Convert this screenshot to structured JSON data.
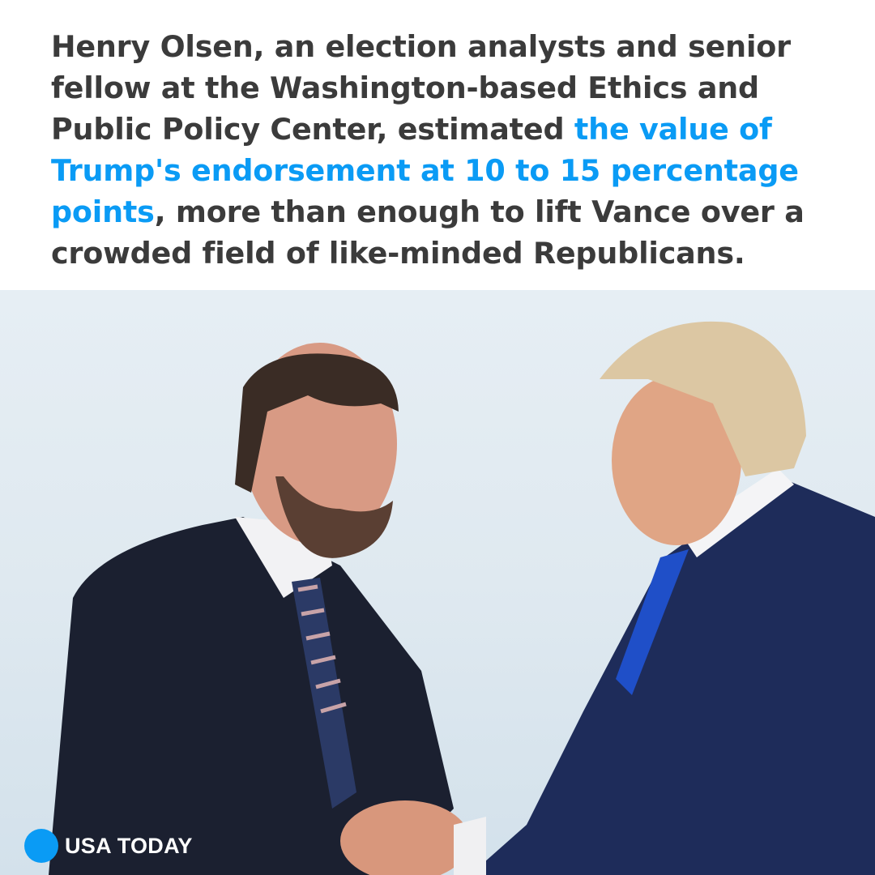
{
  "quote": {
    "before": "Henry Olsen, an election analysts and senior fellow at the Washington-based Ethics and Public Policy Center, estimated ",
    "highlight": "the value of Trump's endorsement at 10 to 15 percentage points",
    "after": ", more than enough to lift Vance over a crowded field of like-minded Republicans."
  },
  "brand": {
    "name": "USA TODAY",
    "logo_icon": "blue-circle-logo"
  },
  "colors": {
    "highlight": "#0a9bf5",
    "text": "#3b3b3b",
    "brand_dot": "#0a9bf5"
  }
}
